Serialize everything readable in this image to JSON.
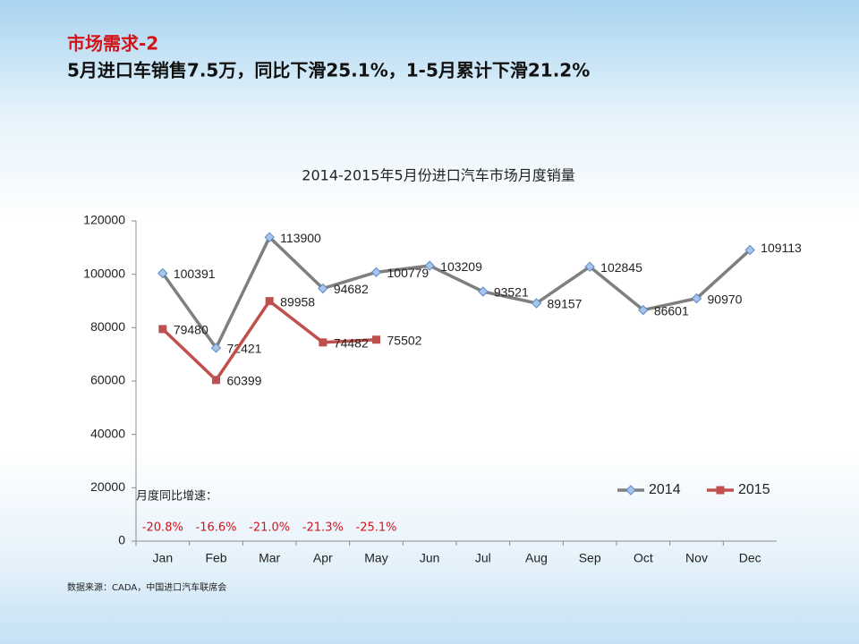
{
  "header": {
    "title": "市场需求-2",
    "subtitle": "5月进口车销售7.5万，同比下滑25.1%，1-5月累计下滑21.2%"
  },
  "chart_data": {
    "type": "line",
    "title": "2014-2015年5月份进口汽车市场月度销量",
    "categories": [
      "Jan",
      "Feb",
      "Mar",
      "Apr",
      "May",
      "Jun",
      "Jul",
      "Aug",
      "Sep",
      "Oct",
      "Nov",
      "Dec"
    ],
    "series": [
      {
        "name": "2014",
        "color": "#7f7f7f",
        "marker": "diamond",
        "marker_color": "#a8c4e6",
        "values": [
          100391,
          72421,
          113900,
          94682,
          100779,
          103209,
          93521,
          89157,
          102845,
          86601,
          90970,
          109113
        ]
      },
      {
        "name": "2015",
        "color": "#c0504d",
        "marker": "square",
        "marker_color": "#c0504d",
        "values": [
          79480,
          60399,
          89958,
          74482,
          75502,
          null,
          null,
          null,
          null,
          null,
          null,
          null
        ]
      }
    ],
    "ylim": [
      0,
      120000
    ],
    "yticks": [
      0,
      20000,
      40000,
      60000,
      80000,
      100000,
      120000
    ],
    "legend": "lower right",
    "growth_title": "月度同比增速：",
    "growth_labels": [
      "-20.8%",
      "-16.6%",
      "-21.0%",
      "-21.3%",
      "-25.1%"
    ]
  },
  "footer": {
    "source": "数据来源：CADA，中国进口汽车联席会"
  }
}
